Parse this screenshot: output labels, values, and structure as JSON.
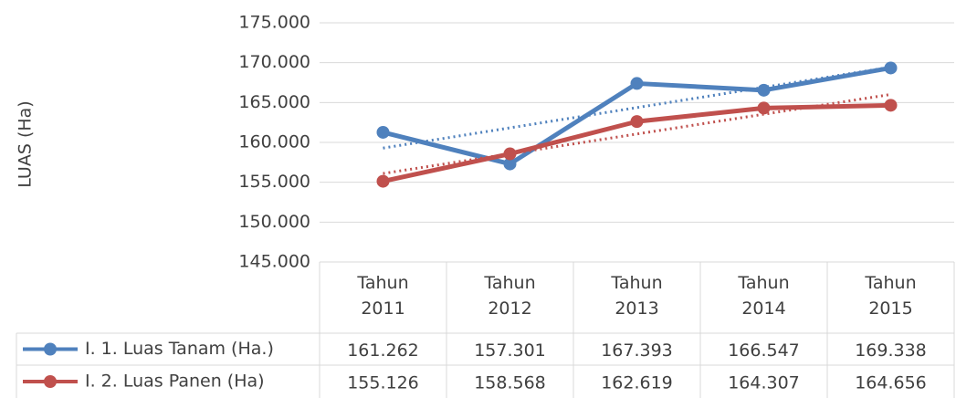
{
  "chart_data": {
    "type": "line",
    "y_label": "LUAS (Ha)",
    "categories": [
      "Tahun 2011",
      "Tahun 2012",
      "Tahun 2013",
      "Tahun 2014",
      "Tahun 2015"
    ],
    "series": [
      {
        "name": "I. 1. Luas Tanam (Ha.)",
        "color": "#4f81bd",
        "values": [
          161262,
          157301,
          167393,
          166547,
          169338
        ],
        "value_labels": [
          "161.262",
          "157.301",
          "167.393",
          "166.547",
          "169.338"
        ]
      },
      {
        "name": "I. 2. Luas Panen (Ha)",
        "color": "#c0504d",
        "values": [
          155126,
          158568,
          162619,
          164307,
          164656
        ],
        "value_labels": [
          "155.126",
          "158.568",
          "162.619",
          "164.307",
          "164.656"
        ]
      }
    ],
    "ylim": [
      145000,
      175000
    ],
    "yticks": [
      {
        "value": 145000,
        "label": "145.000"
      },
      {
        "value": 150000,
        "label": "150.000"
      },
      {
        "value": 155000,
        "label": "155.000"
      },
      {
        "value": 160000,
        "label": "160.000"
      },
      {
        "value": 165000,
        "label": "165.000"
      },
      {
        "value": 170000,
        "label": "170.000"
      },
      {
        "value": 175000,
        "label": "175.000"
      }
    ],
    "grid": true,
    "trendline": "linear",
    "data_table": true
  }
}
